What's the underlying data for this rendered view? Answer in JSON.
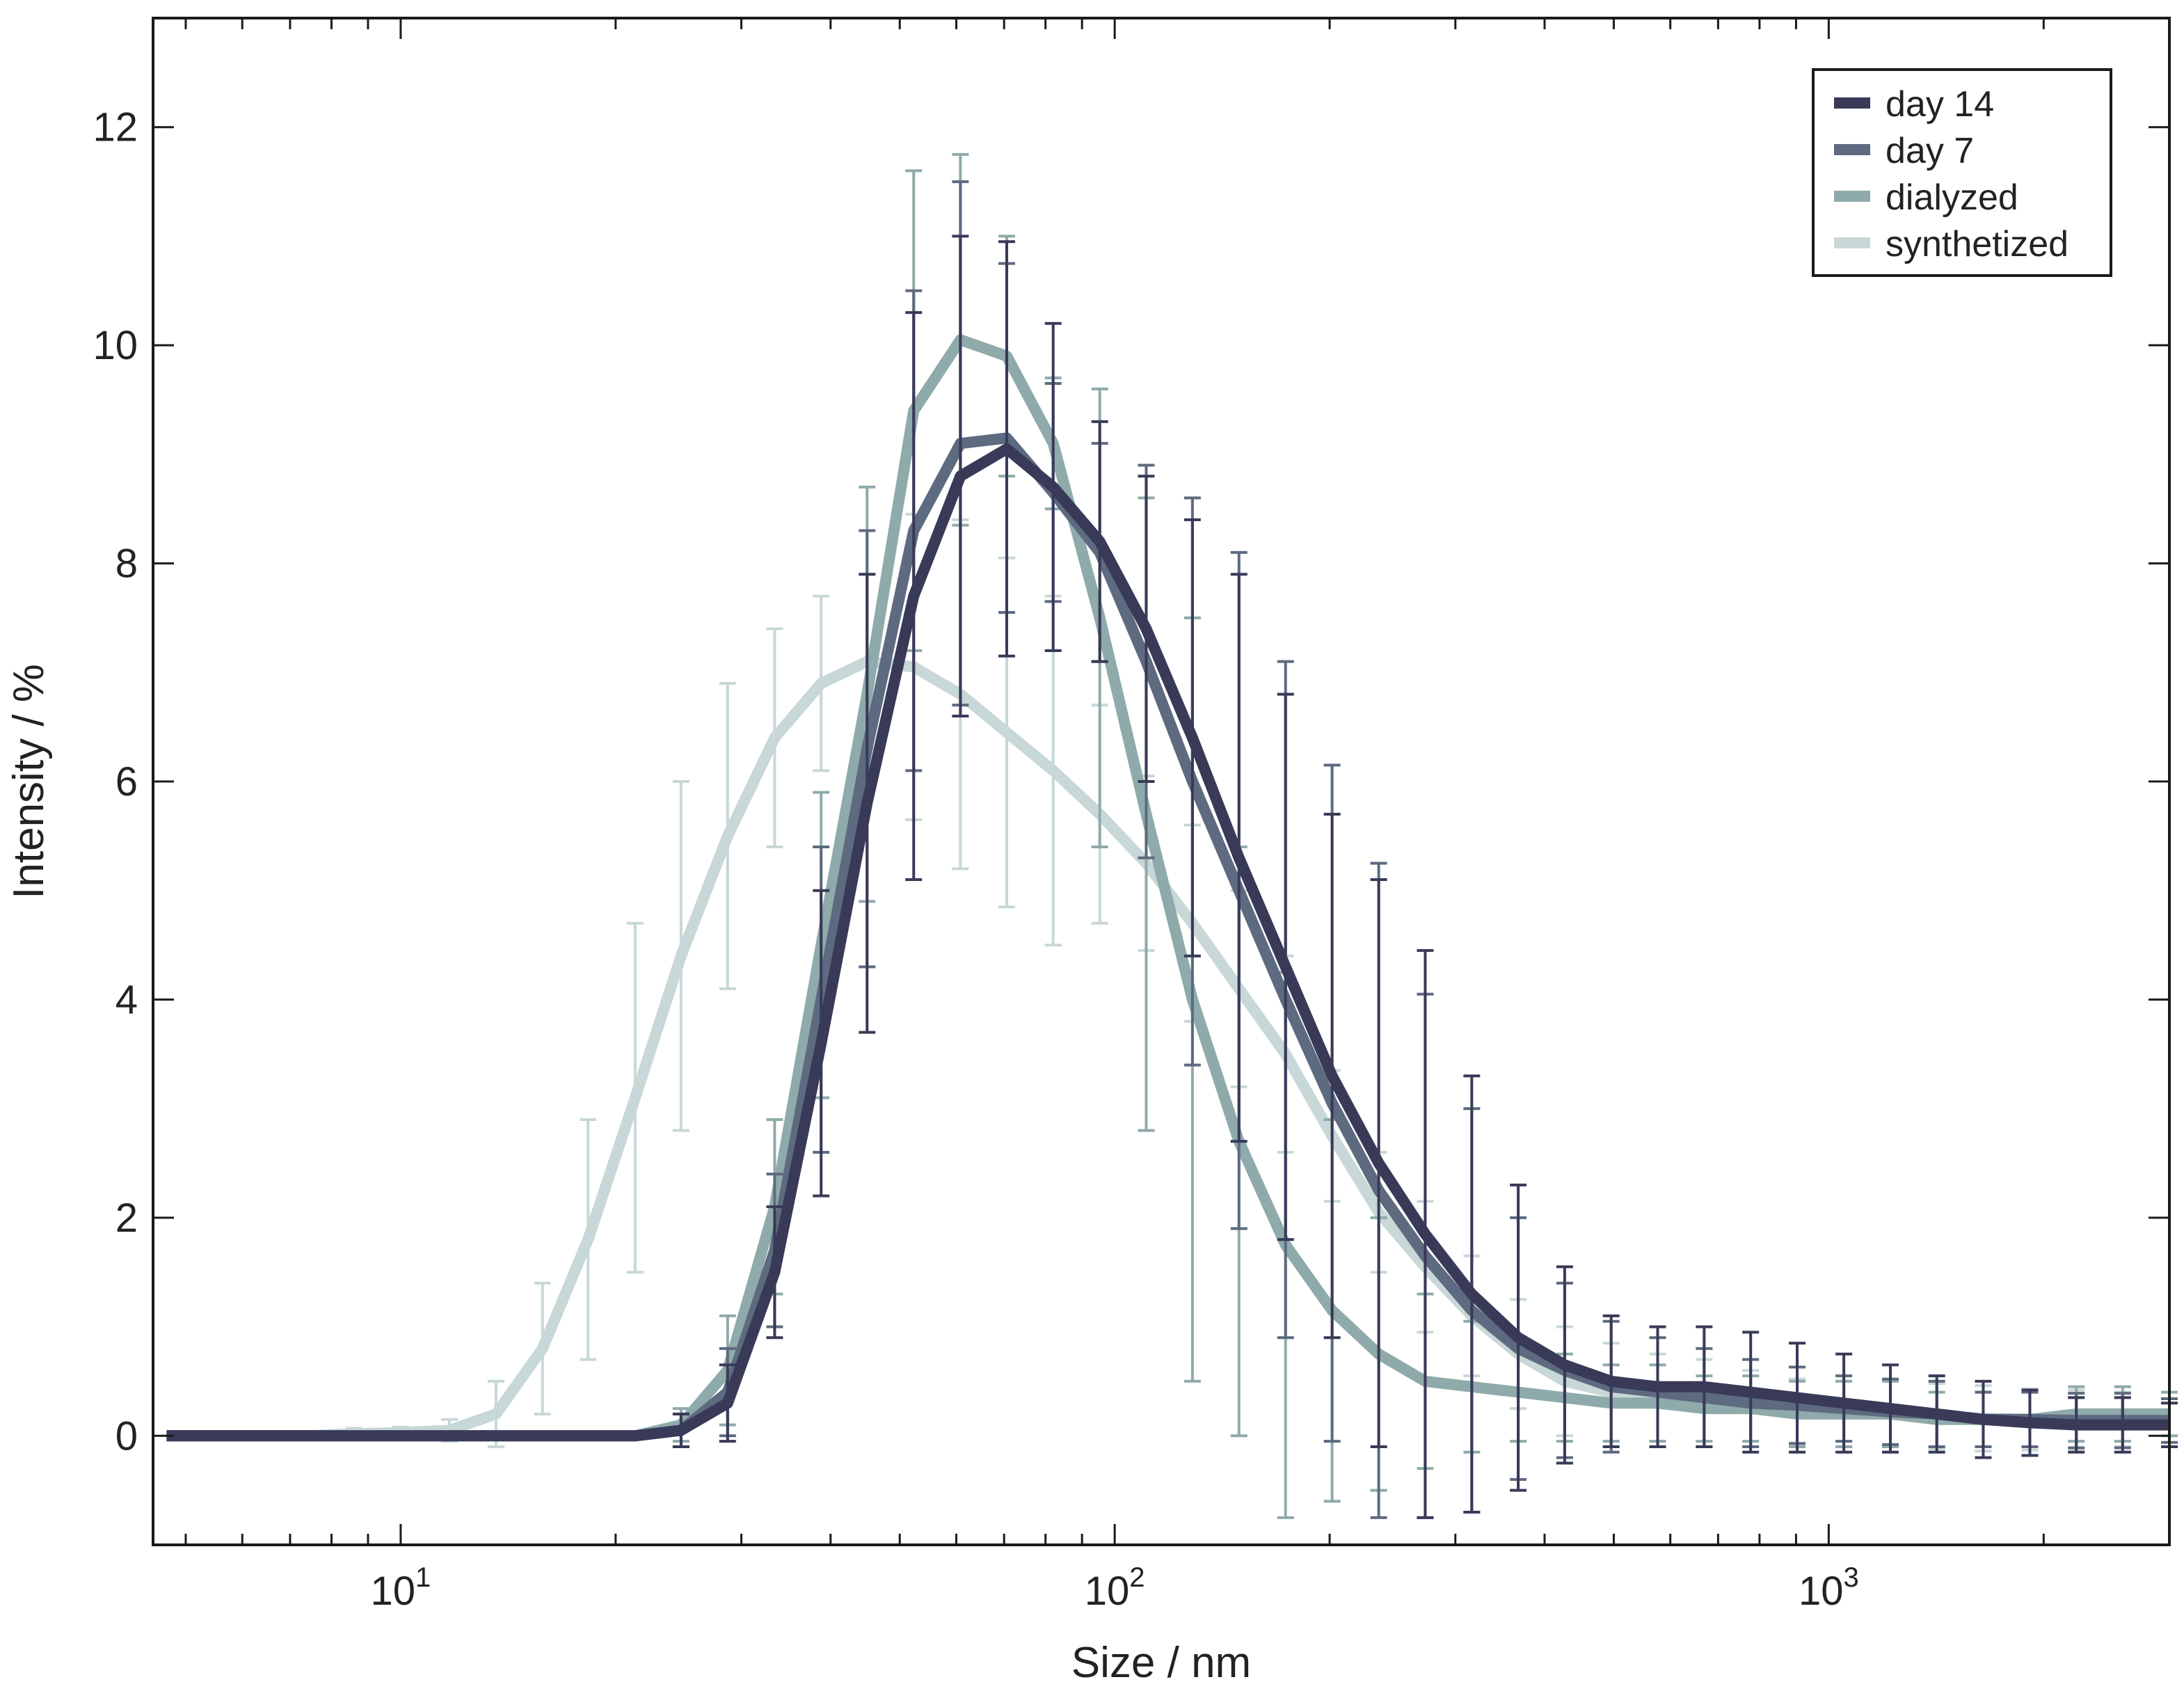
{
  "chart_data": {
    "type": "line",
    "xlabel": "Size / nm",
    "ylabel": "Intensity / %",
    "xscale": "log",
    "xlim": [
      4.5,
      3000
    ],
    "ylim": [
      -1,
      13
    ],
    "yticks": [
      0,
      2,
      4,
      6,
      8,
      10,
      12
    ],
    "xticks": [
      {
        "value": 10,
        "base": "10",
        "exp": "1"
      },
      {
        "value": 100,
        "base": "10",
        "exp": "2"
      },
      {
        "value": 1000,
        "base": "10",
        "exp": "3"
      }
    ],
    "grid": false,
    "legend_position": "top-right",
    "x": [
      4.7,
      5.5,
      6.4,
      7.4,
      8.6,
      10.0,
      11.7,
      13.6,
      15.8,
      18.3,
      21.3,
      24.7,
      28.7,
      33.4,
      38.8,
      45.0,
      52.3,
      60.8,
      70.6,
      82.0,
      95.3,
      110.7,
      128.5,
      149.3,
      173.5,
      201.6,
      234.3,
      272.2,
      316.3,
      367.4,
      426.8,
      495.8,
      576.0,
      669.2,
      777.5,
      903.3,
      1050,
      1220,
      1417,
      1646,
      1913,
      2222,
      2580,
      3000
    ],
    "series": [
      {
        "name": "day 14",
        "color": "#393a58",
        "values": [
          0,
          0,
          0,
          0,
          0,
          0,
          0,
          0,
          0,
          0,
          0,
          0.05,
          0.3,
          1.5,
          3.6,
          5.8,
          7.7,
          8.8,
          9.05,
          8.7,
          8.2,
          7.4,
          6.4,
          5.3,
          4.3,
          3.3,
          2.5,
          1.85,
          1.3,
          0.9,
          0.65,
          0.5,
          0.45,
          0.45,
          0.4,
          0.35,
          0.3,
          0.25,
          0.2,
          0.15,
          0.12,
          0.1,
          0.1,
          0.1
        ],
        "errors": [
          0,
          0,
          0,
          0,
          0,
          0,
          0,
          0,
          0,
          0,
          0,
          0.15,
          0.35,
          0.6,
          1.4,
          2.1,
          2.6,
          2.2,
          1.9,
          1.5,
          1.1,
          1.4,
          2.0,
          2.6,
          2.5,
          2.4,
          2.6,
          2.6,
          2.0,
          1.4,
          0.9,
          0.6,
          0.55,
          0.55,
          0.55,
          0.5,
          0.45,
          0.4,
          0.35,
          0.35,
          0.3,
          0.25,
          0.25,
          0.2
        ]
      },
      {
        "name": "day 7",
        "color": "#5d6a7f",
        "values": [
          0,
          0,
          0,
          0,
          0,
          0,
          0,
          0,
          0,
          0,
          0,
          0.05,
          0.4,
          1.7,
          4.0,
          6.3,
          8.3,
          9.1,
          9.15,
          8.65,
          8.1,
          7.1,
          6.0,
          5.0,
          4.0,
          3.05,
          2.25,
          1.65,
          1.15,
          0.8,
          0.6,
          0.45,
          0.4,
          0.35,
          0.3,
          0.28,
          0.25,
          0.22,
          0.2,
          0.15,
          0.15,
          0.14,
          0.14,
          0.14
        ],
        "errors": [
          0,
          0,
          0,
          0,
          0,
          0,
          0,
          0,
          0,
          0,
          0,
          0.15,
          0.4,
          0.7,
          1.4,
          2.0,
          2.2,
          2.4,
          1.6,
          1.0,
          1.0,
          1.8,
          2.6,
          3.1,
          3.1,
          3.1,
          3.0,
          2.4,
          1.85,
          1.2,
          0.8,
          0.6,
          0.5,
          0.45,
          0.4,
          0.35,
          0.3,
          0.3,
          0.3,
          0.25,
          0.25,
          0.25,
          0.25,
          0.2
        ]
      },
      {
        "name": "dialyzed",
        "color": "#8faaaa",
        "values": [
          0,
          0,
          0,
          0,
          0,
          0,
          0,
          0,
          0,
          0,
          0,
          0.1,
          0.6,
          2.1,
          4.5,
          6.8,
          9.4,
          10.05,
          9.9,
          9.1,
          7.5,
          5.7,
          4.0,
          2.7,
          1.75,
          1.15,
          0.75,
          0.5,
          0.45,
          0.4,
          0.35,
          0.3,
          0.3,
          0.25,
          0.25,
          0.2,
          0.2,
          0.2,
          0.15,
          0.15,
          0.15,
          0.2,
          0.2,
          0.2
        ],
        "errors": [
          0,
          0,
          0,
          0,
          0,
          0,
          0,
          0,
          0,
          0,
          0,
          0.15,
          0.5,
          0.8,
          1.4,
          1.9,
          2.2,
          1.7,
          1.1,
          0.6,
          2.1,
          2.9,
          3.5,
          2.7,
          2.5,
          1.75,
          1.25,
          0.8,
          0.6,
          0.45,
          0.4,
          0.35,
          0.35,
          0.3,
          0.3,
          0.3,
          0.3,
          0.3,
          0.25,
          0.25,
          0.25,
          0.25,
          0.25,
          0.2
        ]
      },
      {
        "name": "synthetized",
        "color": "#c8d7d7",
        "values": [
          0,
          0,
          0,
          0,
          0.02,
          0.03,
          0.05,
          0.2,
          0.8,
          1.8,
          3.1,
          4.4,
          5.5,
          6.4,
          6.9,
          7.1,
          7.05,
          6.8,
          6.45,
          6.1,
          5.7,
          5.25,
          4.7,
          4.1,
          3.5,
          2.75,
          2.05,
          1.55,
          1.1,
          0.75,
          0.5,
          0.4,
          0.35,
          0.3,
          0.25,
          0.22,
          0.2,
          0.2,
          0.18,
          0.16,
          0.15,
          0.15,
          0.15,
          0.15
        ],
        "errors": [
          0,
          0,
          0,
          0,
          0.05,
          0.05,
          0.1,
          0.3,
          0.6,
          1.1,
          1.6,
          1.6,
          1.4,
          1.0,
          0.8,
          0.8,
          1.4,
          1.6,
          1.6,
          1.6,
          1.0,
          0.8,
          0.9,
          0.9,
          0.9,
          0.6,
          0.55,
          0.6,
          0.55,
          0.5,
          0.5,
          0.45,
          0.4,
          0.4,
          0.35,
          0.3,
          0.3,
          0.3,
          0.3,
          0.3,
          0.28,
          0.27,
          0.25,
          0.25
        ]
      }
    ]
  }
}
